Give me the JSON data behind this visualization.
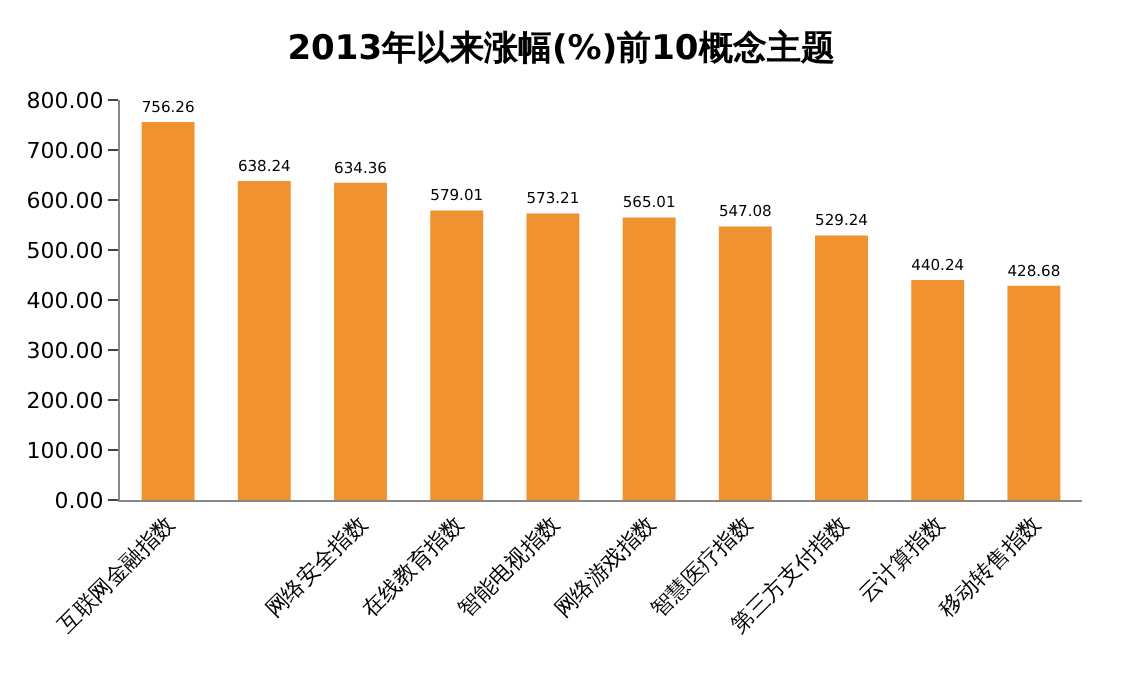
{
  "chart_data": {
    "type": "bar",
    "title": "2013年以来涨幅(%)前10概念主题",
    "categories": [
      "互联网金融指数",
      null,
      "网络安全指数",
      "在线教育指数",
      "智能电视指数",
      "网络游戏指数",
      "智慧医疗指数",
      "第三方支付指数",
      "云计算指数",
      "移动转售指数"
    ],
    "values": [
      756.26,
      638.24,
      634.36,
      579.01,
      573.21,
      565.01,
      547.08,
      529.24,
      440.24,
      428.68
    ],
    "color": "#f0922f",
    "ylim": [
      0,
      800
    ],
    "yticks": [
      {
        "value": 0,
        "label": "0.00"
      },
      {
        "value": 100,
        "label": "100.00"
      },
      {
        "value": 200,
        "label": "200.00"
      },
      {
        "value": 300,
        "label": "300.00"
      },
      {
        "value": 400,
        "label": "400.00"
      },
      {
        "value": 500,
        "label": "500.00"
      },
      {
        "value": 600,
        "label": "600.00"
      },
      {
        "value": 700,
        "label": "700.00"
      },
      {
        "value": 800,
        "label": "800.00"
      }
    ],
    "data_labels": true,
    "grid": false,
    "legend": false
  }
}
